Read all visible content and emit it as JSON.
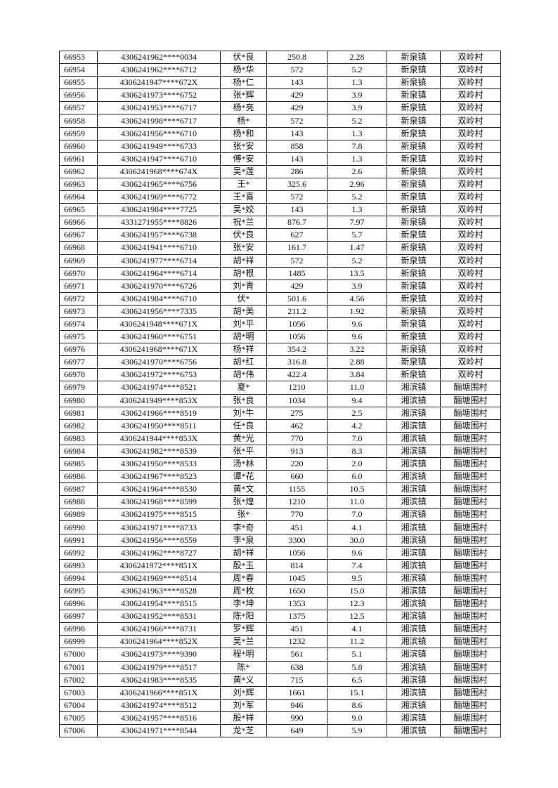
{
  "table": {
    "rows": [
      [
        "66953",
        "4306241962****0034",
        "伏*良",
        "250.8",
        "2.28",
        "新泉镇",
        "双岭村"
      ],
      [
        "66954",
        "4306241962****6712",
        "杨*华",
        "572",
        "5.2",
        "新泉镇",
        "双岭村"
      ],
      [
        "66955",
        "4306241947****672X",
        "杨*仁",
        "143",
        "1.3",
        "新泉镇",
        "双岭村"
      ],
      [
        "66956",
        "4306241973****6752",
        "张*辉",
        "429",
        "3.9",
        "新泉镇",
        "双岭村"
      ],
      [
        "66957",
        "4306241953****6717",
        "杨*亮",
        "429",
        "3.9",
        "新泉镇",
        "双岭村"
      ],
      [
        "66958",
        "4306241998****6717",
        "杨*",
        "572",
        "5.2",
        "新泉镇",
        "双岭村"
      ],
      [
        "66959",
        "4306241956****6710",
        "杨*和",
        "143",
        "1.3",
        "新泉镇",
        "双岭村"
      ],
      [
        "66960",
        "4306241949****6733",
        "张*安",
        "858",
        "7.8",
        "新泉镇",
        "双岭村"
      ],
      [
        "66961",
        "4306241947****6710",
        "傅*安",
        "143",
        "1.3",
        "新泉镇",
        "双岭村"
      ],
      [
        "66962",
        "4306241968****674X",
        "吴*莲",
        "286",
        "2.6",
        "新泉镇",
        "双岭村"
      ],
      [
        "66963",
        "4306241965****6756",
        "王*",
        "325.6",
        "2.96",
        "新泉镇",
        "双岭村"
      ],
      [
        "66964",
        "4306241969****6772",
        "王*喜",
        "572",
        "5.2",
        "新泉镇",
        "双岭村"
      ],
      [
        "66965",
        "4306241984****7725",
        "吴*姣",
        "143",
        "1.3",
        "新泉镇",
        "双岭村"
      ],
      [
        "66966",
        "4331271955****8826",
        "祝*兰",
        "876.7",
        "7.97",
        "新泉镇",
        "双岭村"
      ],
      [
        "66967",
        "4306241957****6738",
        "伏*良",
        "627",
        "5.7",
        "新泉镇",
        "双岭村"
      ],
      [
        "66968",
        "4306241941****6710",
        "张*安",
        "161.7",
        "1.47",
        "新泉镇",
        "双岭村"
      ],
      [
        "66969",
        "4306241977****6714",
        "胡*祥",
        "572",
        "5.2",
        "新泉镇",
        "双岭村"
      ],
      [
        "66970",
        "4306241964****6714",
        "胡*根",
        "1485",
        "13.5",
        "新泉镇",
        "双岭村"
      ],
      [
        "66971",
        "4306241970****6726",
        "刘*青",
        "429",
        "3.9",
        "新泉镇",
        "双岭村"
      ],
      [
        "66972",
        "4306241984****6710",
        "伏*",
        "501.6",
        "4.56",
        "新泉镇",
        "双岭村"
      ],
      [
        "66973",
        "4306241956****7335",
        "胡*美",
        "211.2",
        "1.92",
        "新泉镇",
        "双岭村"
      ],
      [
        "66974",
        "4306241948****671X",
        "刘*平",
        "1056",
        "9.6",
        "新泉镇",
        "双岭村"
      ],
      [
        "66975",
        "4306241960****6751",
        "胡*明",
        "1056",
        "9.6",
        "新泉镇",
        "双岭村"
      ],
      [
        "66976",
        "4306241968****671X",
        "杨*祥",
        "354.2",
        "3.22",
        "新泉镇",
        "双岭村"
      ],
      [
        "66977",
        "4306241970****6756",
        "胡*红",
        "316.8",
        "2.88",
        "新泉镇",
        "双岭村"
      ],
      [
        "66978",
        "4306241972****6753",
        "胡*伟",
        "422.4",
        "3.84",
        "新泉镇",
        "双岭村"
      ],
      [
        "66979",
        "4306241974****8521",
        "夏*",
        "1210",
        "11.0",
        "湘滨镇",
        "酾塘围村"
      ],
      [
        "66980",
        "4306241949****853X",
        "张*良",
        "1034",
        "9.4",
        "湘滨镇",
        "酾塘围村"
      ],
      [
        "66981",
        "4306241966****8519",
        "刘*牛",
        "275",
        "2.5",
        "湘滨镇",
        "酾塘围村"
      ],
      [
        "66982",
        "4306241950****8511",
        "任*良",
        "462",
        "4.2",
        "湘滨镇",
        "酾塘围村"
      ],
      [
        "66983",
        "4306241944****853X",
        "黄*光",
        "770",
        "7.0",
        "湘滨镇",
        "酾塘围村"
      ],
      [
        "66984",
        "4306241982****8539",
        "张*平",
        "913",
        "8.3",
        "湘滨镇",
        "酾塘围村"
      ],
      [
        "66985",
        "4306241950****8533",
        "汤*林",
        "220",
        "2.0",
        "湘滨镇",
        "酾塘围村"
      ],
      [
        "66986",
        "4306241967****8523",
        "谭*花",
        "660",
        "6.0",
        "湘滨镇",
        "酾塘围村"
      ],
      [
        "66987",
        "4306241964****8530",
        "黄*文",
        "1155",
        "10.5",
        "湘滨镇",
        "酾塘围村"
      ],
      [
        "66988",
        "4306241968****8599",
        "张*煌",
        "1210",
        "11.0",
        "湘滨镇",
        "酾塘围村"
      ],
      [
        "66989",
        "4306241975****8515",
        "张*",
        "770",
        "7.0",
        "湘滨镇",
        "酾塘围村"
      ],
      [
        "66990",
        "4306241971****8733",
        "李*奇",
        "451",
        "4.1",
        "湘滨镇",
        "酾塘围村"
      ],
      [
        "66991",
        "4306241956****8559",
        "李*泉",
        "3300",
        "30.0",
        "湘滨镇",
        "酾塘围村"
      ],
      [
        "66992",
        "4306241962****8727",
        "胡*祥",
        "1056",
        "9.6",
        "湘滨镇",
        "酾塘围村"
      ],
      [
        "66993",
        "4306241972****851X",
        "殷*玉",
        "814",
        "7.4",
        "湘滨镇",
        "酾塘围村"
      ],
      [
        "66994",
        "4306241969****8514",
        "周*春",
        "1045",
        "9.5",
        "湘滨镇",
        "酾塘围村"
      ],
      [
        "66995",
        "4306241963****8528",
        "周*枚",
        "1650",
        "15.0",
        "湘滨镇",
        "酾塘围村"
      ],
      [
        "66996",
        "4306241954****8515",
        "李*坤",
        "1353",
        "12.3",
        "湘滨镇",
        "酾塘围村"
      ],
      [
        "66997",
        "4306241952****8531",
        "陈*阳",
        "1375",
        "12.5",
        "湘滨镇",
        "酾塘围村"
      ],
      [
        "66998",
        "4306241966****8731",
        "罗*辉",
        "451",
        "4.1",
        "湘滨镇",
        "酾塘围村"
      ],
      [
        "66999",
        "4306241964****852X",
        "吴*兰",
        "1232",
        "11.2",
        "湘滨镇",
        "酾塘围村"
      ],
      [
        "67000",
        "4306241973****9390",
        "程*明",
        "561",
        "5.1",
        "湘滨镇",
        "酾塘围村"
      ],
      [
        "67001",
        "4306241979****8517",
        "陈*",
        "638",
        "5.8",
        "湘滨镇",
        "酾塘围村"
      ],
      [
        "67002",
        "4306241983****8535",
        "黄*义",
        "715",
        "6.5",
        "湘滨镇",
        "酾塘围村"
      ],
      [
        "67003",
        "4306241966****851X",
        "刘*辉",
        "1661",
        "15.1",
        "湘滨镇",
        "酾塘围村"
      ],
      [
        "67004",
        "4306241974****8512",
        "刘*军",
        "946",
        "8.6",
        "湘滨镇",
        "酾塘围村"
      ],
      [
        "67005",
        "4306241957****8516",
        "殷*祥",
        "990",
        "9.0",
        "湘滨镇",
        "酾塘围村"
      ],
      [
        "67006",
        "4306241971****8544",
        "龙*芝",
        "649",
        "5.9",
        "湘滨镇",
        "酾塘围村"
      ]
    ]
  }
}
